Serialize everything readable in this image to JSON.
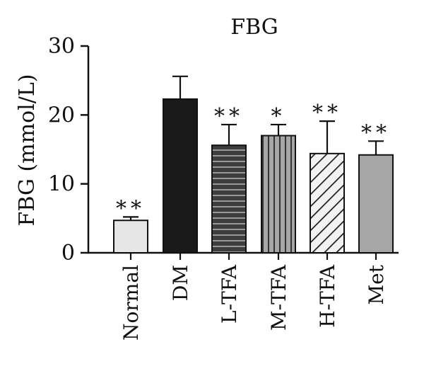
{
  "chart_data": {
    "type": "bar",
    "title": "FBG",
    "xlabel": "",
    "ylabel": "FBG (mmol/L)",
    "ylim": [
      0,
      30
    ],
    "yticks": [
      0,
      10,
      20,
      30
    ],
    "grid": false,
    "categories": [
      "Normal",
      "DM",
      "L-TFA",
      "M-TFA",
      "H-TFA",
      "Met"
    ],
    "series": [
      {
        "values": [
          4.7,
          22.3,
          15.6,
          17.0,
          14.4,
          14.2
        ],
        "error": [
          0.5,
          3.3,
          3.0,
          1.6,
          4.7,
          2.0
        ],
        "significance": [
          "**",
          "",
          "**",
          "*",
          "**",
          "**"
        ],
        "fills": [
          "light-gray",
          "black",
          "dark-gray horizontal stripes",
          "gray vertical stripes",
          "white diagonal hatch",
          "gray"
        ]
      }
    ]
  },
  "colors": {
    "normal_fill": "#e6e6e6",
    "dm_fill": "#1a1a1a",
    "ltfa_fill": "#3d3d3d",
    "mtfa_fill": "#a6a6a6",
    "htfa_fill": "#f2f2f2",
    "met_fill": "#a6a6a6",
    "axis": "#111111"
  }
}
